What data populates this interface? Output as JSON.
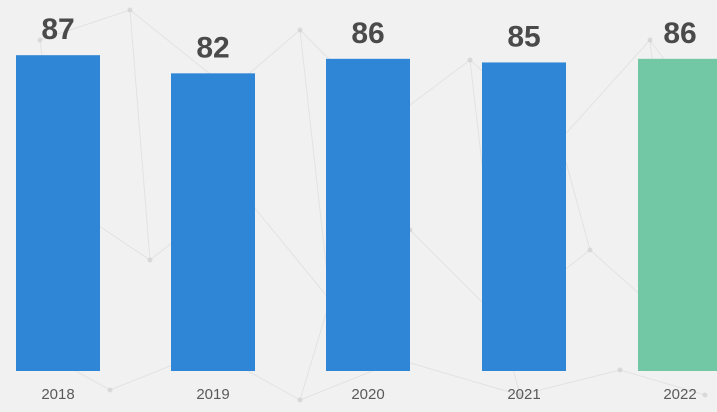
{
  "chart_data": {
    "type": "bar",
    "categories": [
      "2018",
      "2019",
      "2020",
      "2021",
      "2022"
    ],
    "values": [
      87,
      82,
      86,
      85,
      86
    ],
    "data_labels": [
      "87",
      "82",
      "86",
      "85",
      "86"
    ],
    "ylim": [
      0,
      100
    ],
    "grid": false,
    "legend": "none",
    "title": "",
    "xlabel": "",
    "ylabel": "",
    "colors": {
      "default_bar": "#2f86d6",
      "highlight_bar": "#72c8a4",
      "background": "#f1f1f1"
    },
    "highlight_category": "2022"
  }
}
